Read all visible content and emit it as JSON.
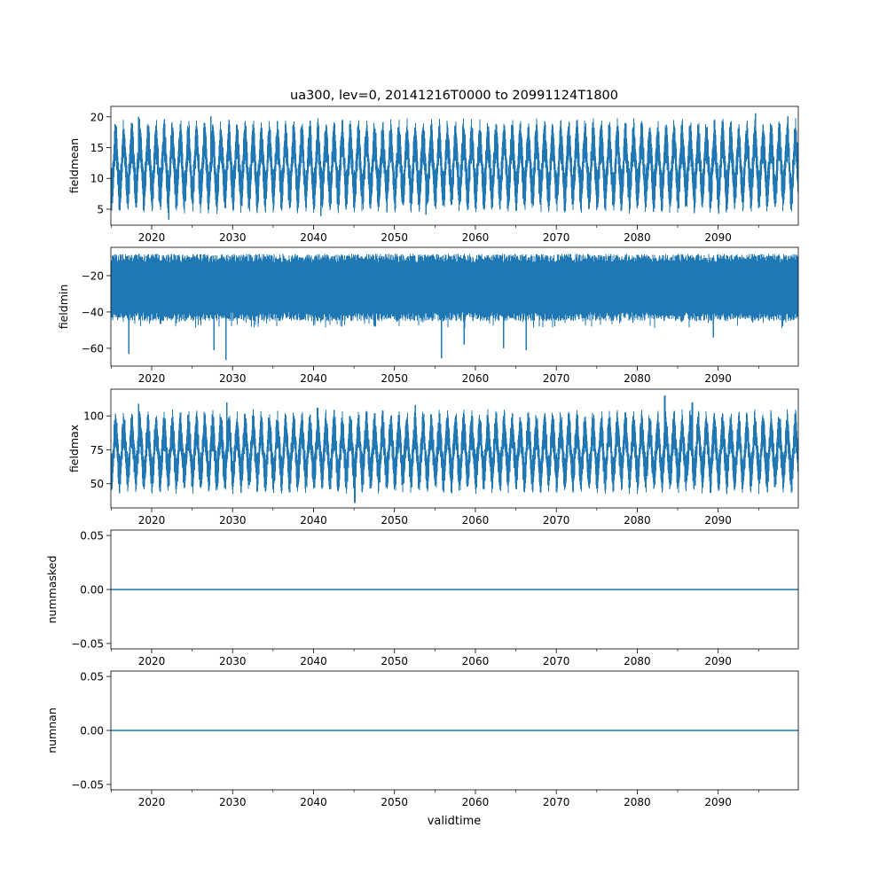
{
  "chart_data": {
    "type": "line",
    "title": "ua300, lev=0, 20141216T0000 to 20991124T1800",
    "xlabel": "validtime",
    "x_range": [
      2014.96,
      2099.9
    ],
    "xticks": [
      "2020",
      "2030",
      "2040",
      "2050",
      "2060",
      "2070",
      "2080",
      "2090"
    ],
    "xtick_values": [
      2020,
      2030,
      2040,
      2050,
      2060,
      2070,
      2080,
      2090
    ],
    "minor_xtick_step": 5,
    "color": "#1f77b4",
    "subplots": [
      {
        "ylabel": "fieldmean",
        "ylim": [
          2.4,
          21.7
        ],
        "yticks": [
          "5",
          "10",
          "15",
          "20"
        ],
        "ytick_values": [
          5,
          10,
          15,
          20
        ],
        "pattern": {
          "seasonal": true,
          "low": 6.5,
          "high": 17.5,
          "noise": 1.8
        },
        "extremes": [
          [
            2022.1,
            3.3
          ],
          [
            2027.3,
            20.1
          ],
          [
            2040.9,
            3.9
          ],
          [
            2053.9,
            4.1
          ],
          [
            2094.6,
            20.6
          ],
          [
            2098.6,
            20.1
          ],
          [
            2018.4,
            20.0
          ]
        ]
      },
      {
        "ylabel": "fieldmin",
        "ylim": [
          -69.8,
          -4.4
        ],
        "yticks": [
          "−20",
          "−40",
          "−60"
        ],
        "ytick_values": [
          -20,
          -40,
          -60
        ],
        "pattern": {
          "seasonal": false,
          "low": -40,
          "high": -13,
          "noise": 5
        },
        "extremes": [
          [
            2029.2,
            -66.5
          ],
          [
            2055.8,
            -65.5
          ],
          [
            2017.2,
            -63
          ],
          [
            2027.7,
            -61
          ],
          [
            2066.3,
            -61
          ],
          [
            2063.5,
            -60
          ],
          [
            2058.6,
            -58
          ],
          [
            2089.4,
            -54
          ]
        ]
      },
      {
        "ylabel": "fieldmax",
        "ylim": [
          32.2,
          119.7
        ],
        "yticks": [
          "50",
          "75",
          "100"
        ],
        "ytick_values": [
          50,
          75,
          100
        ],
        "pattern": {
          "seasonal": true,
          "low": 52,
          "high": 95,
          "noise": 8
        },
        "extremes": [
          [
            2083.4,
            115
          ],
          [
            2045.1,
            36
          ],
          [
            2052.6,
            108
          ],
          [
            2040.5,
            106
          ],
          [
            2086.8,
            110
          ],
          [
            2029.3,
            110
          ],
          [
            2018.4,
            109
          ]
        ]
      },
      {
        "ylabel": "nummasked",
        "ylim": [
          -0.055,
          0.055
        ],
        "yticks": [
          "−0.05",
          "0.00",
          "0.05"
        ],
        "ytick_values": [
          -0.05,
          0,
          0.05
        ],
        "pattern": {
          "constant": 0
        }
      },
      {
        "ylabel": "numnan",
        "ylim": [
          -0.055,
          0.055
        ],
        "yticks": [
          "−0.05",
          "0.00",
          "0.05"
        ],
        "ytick_values": [
          -0.05,
          0,
          0.05
        ],
        "pattern": {
          "constant": 0
        }
      }
    ]
  }
}
